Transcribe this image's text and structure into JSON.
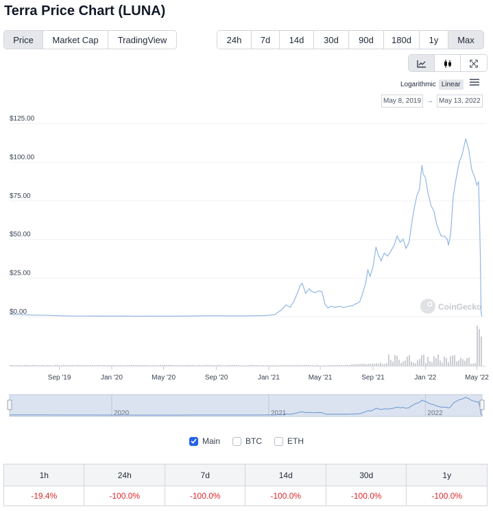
{
  "page": {
    "title": "Terra Price Chart (LUNA)"
  },
  "view_tabs": [
    {
      "label": "Price",
      "active": true
    },
    {
      "label": "Market Cap",
      "active": false
    },
    {
      "label": "TradingView",
      "active": false
    }
  ],
  "range_tabs": [
    {
      "label": "24h",
      "active": false
    },
    {
      "label": "7d",
      "active": false
    },
    {
      "label": "14d",
      "active": false
    },
    {
      "label": "30d",
      "active": false
    },
    {
      "label": "90d",
      "active": false
    },
    {
      "label": "180d",
      "active": false
    },
    {
      "label": "1y",
      "active": false
    },
    {
      "label": "Max",
      "active": true
    }
  ],
  "chart_modes": [
    {
      "icon": "line-chart-icon",
      "active": true
    },
    {
      "icon": "candlestick-icon",
      "active": false
    },
    {
      "icon": "fullscreen-icon",
      "active": false
    }
  ],
  "scale": {
    "logarithmic": "Logarithmic",
    "linear": "Linear",
    "selected": "Linear"
  },
  "date_range": {
    "from": "May 8, 2019",
    "arrow": "→",
    "to": "May 13, 2022"
  },
  "watermark": "CoinGecko",
  "colors": {
    "line": "#90b6e3",
    "volume": "#c9ccd1",
    "navigator_fill": "#dbe3f1",
    "negative": "#dc2626",
    "accent": "#2563eb"
  },
  "chart_data": {
    "type": "line",
    "title": "",
    "xlabel": "",
    "ylabel": "",
    "ylim": [
      0,
      125
    ],
    "yticks": [
      "$125.00",
      "$100.00",
      "$75.00",
      "$50.00",
      "$25.00",
      "$0.00"
    ],
    "xticks": [
      "Sep '19",
      "Jan '20",
      "May '20",
      "Sep '20",
      "Jan '21",
      "May '21",
      "Sep '21",
      "Jan '22",
      "May '22"
    ],
    "navigator_labels": [
      "2020",
      "2021",
      "2022"
    ],
    "x_range": [
      "2019-05-08",
      "2022-05-13"
    ],
    "grid": true,
    "series": [
      {
        "x": [
          "2019-05-08",
          "2019-06-01",
          "2019-07-01",
          "2019-08-01",
          "2019-09-01",
          "2019-10-01",
          "2019-11-01",
          "2019-12-01",
          "2020-01-01",
          "2020-02-01",
          "2020-03-01",
          "2020-04-01",
          "2020-05-01",
          "2020-06-01",
          "2020-07-01",
          "2020-08-01",
          "2020-09-01",
          "2020-10-01",
          "2020-11-01",
          "2020-12-01",
          "2021-01-01",
          "2021-01-15",
          "2021-02-01",
          "2021-02-10",
          "2021-02-20",
          "2021-03-01",
          "2021-03-10",
          "2021-03-15",
          "2021-03-20",
          "2021-03-28",
          "2021-04-05",
          "2021-04-12",
          "2021-04-20",
          "2021-04-28",
          "2021-05-05",
          "2021-05-12",
          "2021-05-19",
          "2021-05-25",
          "2021-06-05",
          "2021-06-15",
          "2021-06-25",
          "2021-07-05",
          "2021-07-15",
          "2021-07-25",
          "2021-08-01",
          "2021-08-08",
          "2021-08-15",
          "2021-08-20",
          "2021-08-25",
          "2021-09-01",
          "2021-09-08",
          "2021-09-13",
          "2021-09-20",
          "2021-09-27",
          "2021-10-05",
          "2021-10-12",
          "2021-10-20",
          "2021-10-27",
          "2021-11-03",
          "2021-11-10",
          "2021-11-17",
          "2021-11-24",
          "2021-12-01",
          "2021-12-06",
          "2021-12-12",
          "2021-12-18",
          "2021-12-24",
          "2021-12-27",
          "2022-01-01",
          "2022-01-07",
          "2022-01-14",
          "2022-01-21",
          "2022-01-27",
          "2022-02-01",
          "2022-02-07",
          "2022-02-14",
          "2022-02-21",
          "2022-02-24",
          "2022-03-01",
          "2022-03-07",
          "2022-03-14",
          "2022-03-21",
          "2022-03-28",
          "2022-04-05",
          "2022-04-12",
          "2022-04-19",
          "2022-04-26",
          "2022-05-01",
          "2022-05-05",
          "2022-05-07",
          "2022-05-09",
          "2022-05-10",
          "2022-05-11",
          "2022-05-12",
          "2022-05-13"
        ],
        "values": [
          1.3,
          1.2,
          0.9,
          0.8,
          0.5,
          0.3,
          0.3,
          0.25,
          0.2,
          0.25,
          0.15,
          0.2,
          0.2,
          0.2,
          0.3,
          0.45,
          0.5,
          0.4,
          0.4,
          0.5,
          0.7,
          1.2,
          4.5,
          7.5,
          6.0,
          10.0,
          16.0,
          20.0,
          21.5,
          15.0,
          18.0,
          16.0,
          15.5,
          16.5,
          16.0,
          8.0,
          5.5,
          6.5,
          6.0,
          6.5,
          5.8,
          6.5,
          7.0,
          8.5,
          9.5,
          15.0,
          22.0,
          30.0,
          26.0,
          32.0,
          45.0,
          40.0,
          36.0,
          41.0,
          39.0,
          42.0,
          46.0,
          52.0,
          48.0,
          50.0,
          44.0,
          48.0,
          62.0,
          70.0,
          78.0,
          82.0,
          98.0,
          92.0,
          90.0,
          80.0,
          72.0,
          68.0,
          60.0,
          56.0,
          52.0,
          52.0,
          50.0,
          46.0,
          54.0,
          78.0,
          90.0,
          100.0,
          105.0,
          115.0,
          108.0,
          95.0,
          90.0,
          85.0,
          87.0,
          66.0,
          40.0,
          18.0,
          3.0,
          0.5,
          0.01
        ]
      }
    ]
  },
  "performance": {
    "headers": [
      "1h",
      "24h",
      "7d",
      "14d",
      "30d",
      "1y"
    ],
    "values": [
      "-19.4%",
      "-100.0%",
      "-100.0%",
      "-100.0%",
      "-100.0%",
      "-100.0%"
    ]
  },
  "legend": [
    {
      "label": "Main",
      "checked": true
    },
    {
      "label": "BTC",
      "checked": false
    },
    {
      "label": "ETH",
      "checked": false
    }
  ]
}
